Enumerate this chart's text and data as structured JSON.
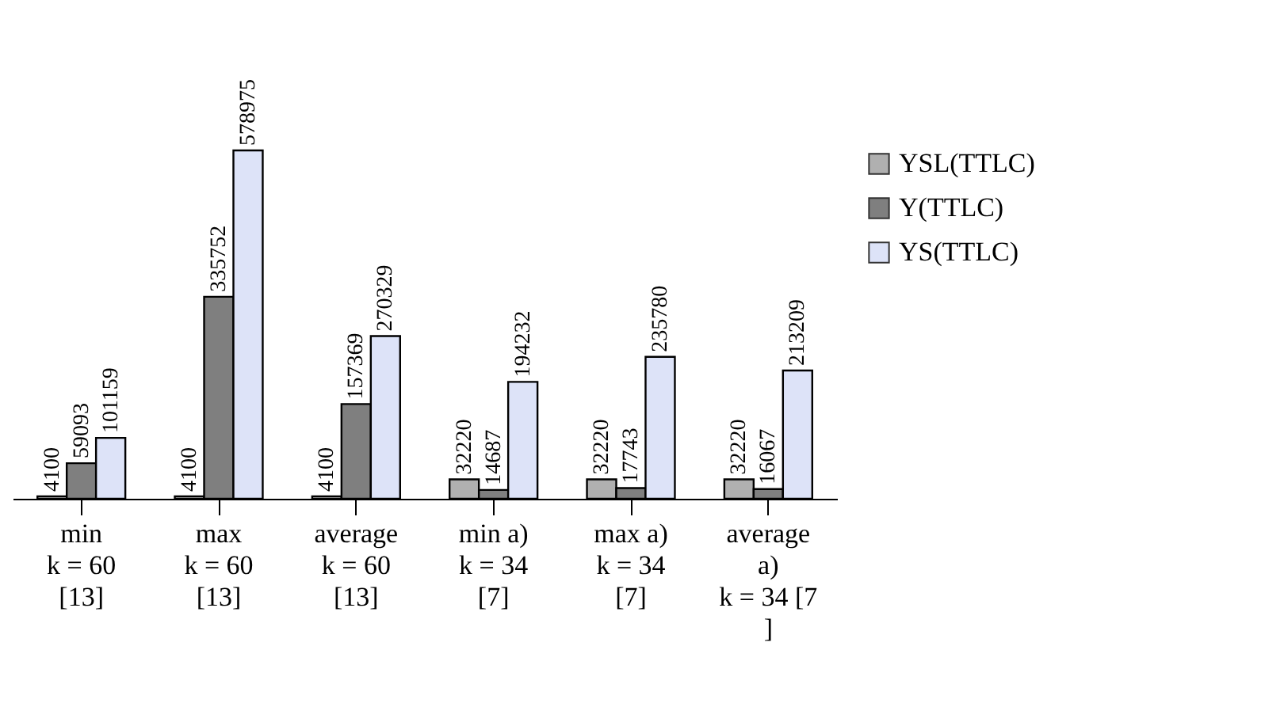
{
  "chart_data": {
    "type": "bar",
    "categories": [
      "min\n\nk = 60\n[13]",
      "max\n\nk = 60\n[13]",
      "average\n\nk = 60\n[13]",
      "min a)\n\nk = 34\n[7]",
      "max a)\n\nk = 34\n[7]",
      "average\na)\nk = 34 [7\n]"
    ],
    "series": [
      {
        "name": "YSL(TTLC)",
        "color": "#b0b0b0",
        "values": [
          4100,
          4100,
          4100,
          32220,
          32220,
          32220
        ]
      },
      {
        "name": "Y(TTLC)",
        "color": "#7f7f7f",
        "values": [
          59093,
          335752,
          157369,
          14687,
          17743,
          16067
        ]
      },
      {
        "name": "YS(TTLC)",
        "color": "#dde3f8",
        "values": [
          101159,
          578975,
          270329,
          194232,
          235780,
          213209
        ]
      }
    ],
    "data_labels": true,
    "legend": "right",
    "grid": false
  }
}
